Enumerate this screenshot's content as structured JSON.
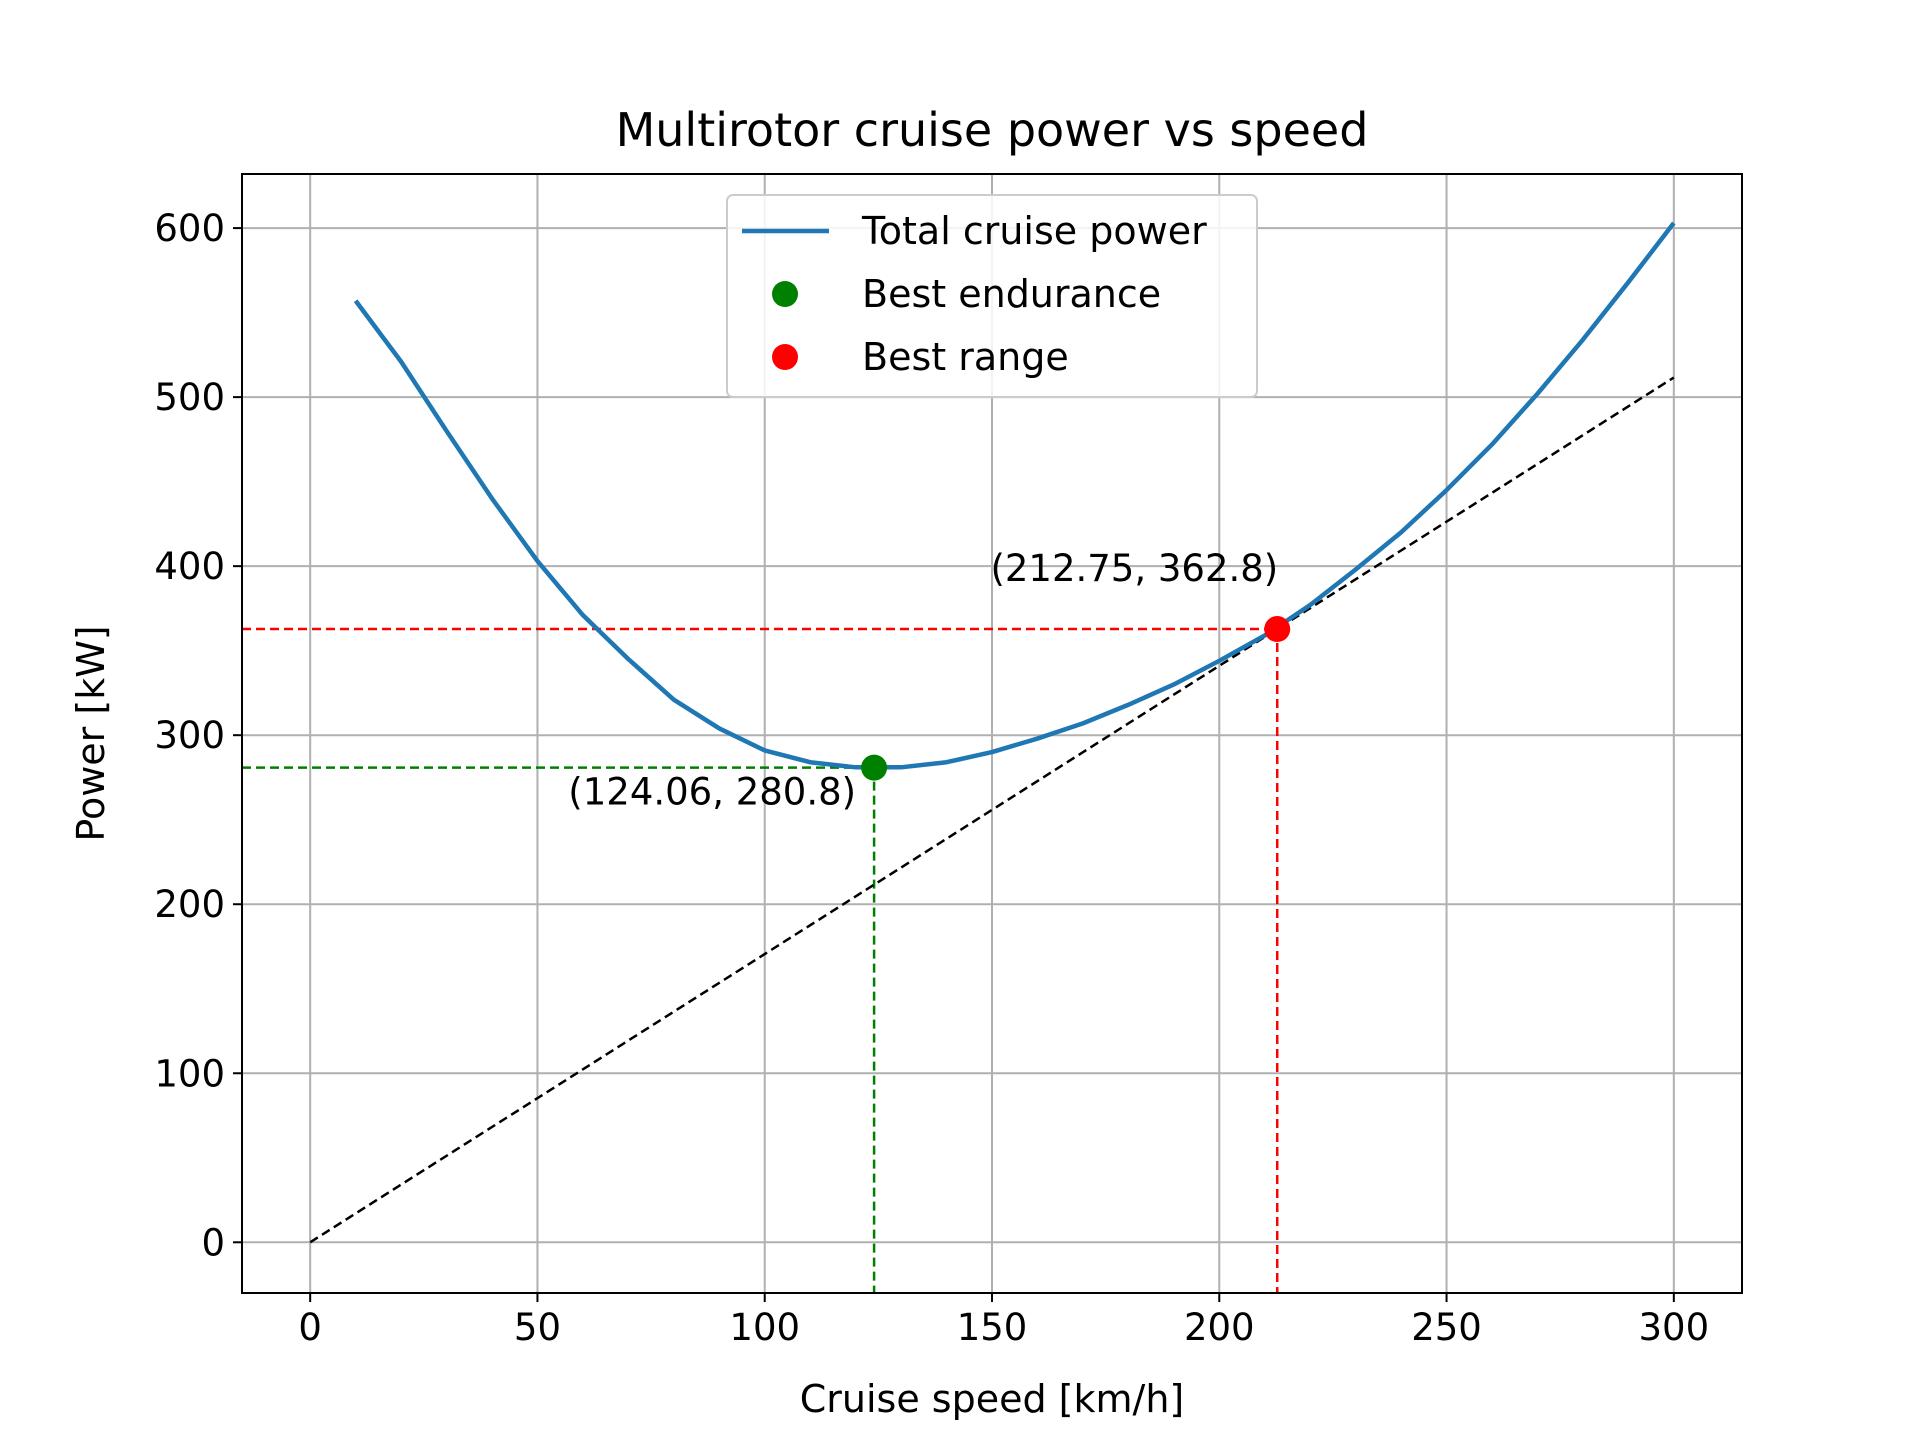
{
  "chart_data": {
    "type": "line",
    "title": "Multirotor cruise power vs speed",
    "xlabel": "Cruise speed [km/h]",
    "ylabel": "Power [kW]",
    "xlim": [
      -15,
      315
    ],
    "ylim": [
      -30,
      632
    ],
    "grid": true,
    "x_ticks": [
      0,
      50,
      100,
      150,
      200,
      250,
      300
    ],
    "y_ticks": [
      0,
      100,
      200,
      300,
      400,
      500,
      600
    ],
    "legend_position": "upper center",
    "series": [
      {
        "name": "Total cruise power",
        "color": "#1f77b4",
        "x": [
          10,
          20,
          30,
          40,
          50,
          60,
          70,
          80,
          90,
          100,
          110,
          120,
          130,
          140,
          150,
          160,
          170,
          180,
          190,
          200,
          210,
          220,
          230,
          240,
          250,
          260,
          270,
          280,
          290,
          300
        ],
        "y": [
          557,
          521,
          480,
          440,
          403,
          371,
          345,
          321,
          304,
          291,
          284,
          281,
          281,
          284,
          290,
          298,
          307,
          318,
          330,
          344,
          359,
          377,
          398,
          420,
          445,
          472,
          502,
          534,
          568,
          603
        ]
      },
      {
        "name": "Best endurance",
        "color": "#008000",
        "marker": "circle",
        "x": [
          124.06
        ],
        "y": [
          280.8
        ]
      },
      {
        "name": "Best range",
        "color": "#ff0000",
        "marker": "circle",
        "x": [
          212.75
        ],
        "y": [
          362.8
        ]
      }
    ],
    "tangent_line": {
      "color": "#000000",
      "style": "dashed",
      "x": [
        0,
        300
      ],
      "y": [
        0,
        511.6
      ]
    },
    "reference_lines": [
      {
        "color": "#008000",
        "style": "dashed",
        "x": 124.06,
        "y": 280.8
      },
      {
        "color": "#ff0000",
        "style": "dashed",
        "x": 212.75,
        "y": 362.8
      }
    ],
    "annotations": [
      {
        "text": "(124.06, 280.8)",
        "x": 124.06,
        "y": 280.8,
        "placement": "below-left"
      },
      {
        "text": "(212.75, 362.8)",
        "x": 212.75,
        "y": 362.8,
        "placement": "above-left"
      }
    ]
  }
}
